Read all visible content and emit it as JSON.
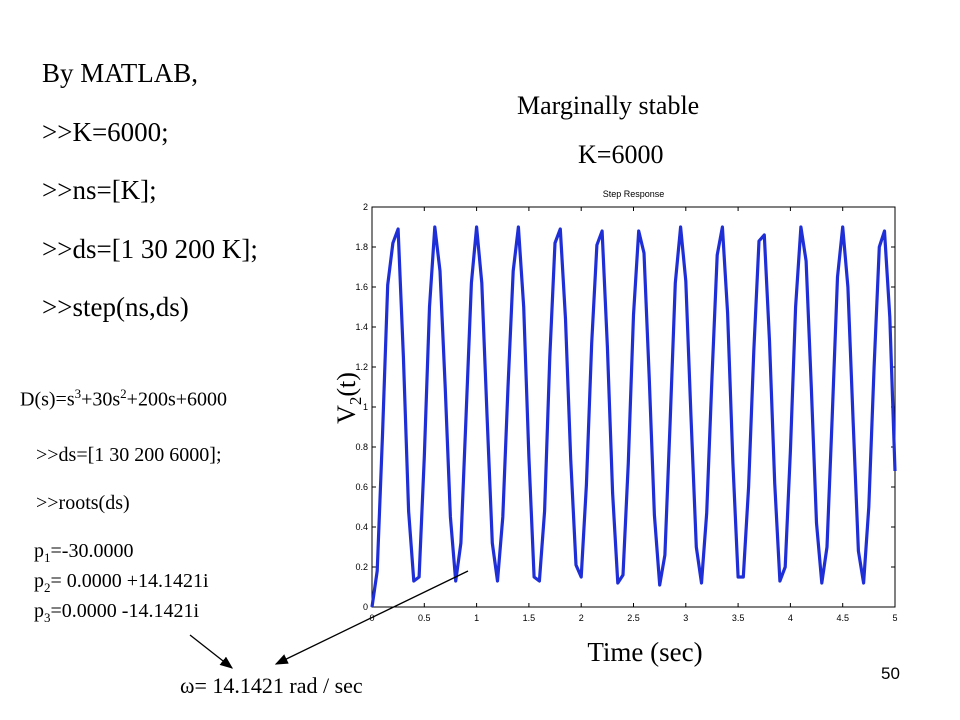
{
  "code": {
    "heading": "By MATLAB,",
    "lines": [
      ">>K=6000;",
      ">>ns=[K];",
      ">>ds=[1 30 200 K];",
      ">>step(ns,ds)"
    ]
  },
  "annotation": {
    "line1": "Marginally stable",
    "line2": "K=6000"
  },
  "polynomial": {
    "prefix": "D(s)=s",
    "exp1": "3",
    "mid": "+30s",
    "exp2": "2",
    "suffix": "+200s+6000"
  },
  "roots_code": {
    "line1": ">>ds=[1 30 200 6000];",
    "line2": ">>roots(ds)"
  },
  "roots": [
    {
      "sym": "p",
      "idx": "1",
      "value": "=-30.0000"
    },
    {
      "sym": "p",
      "idx": "2",
      "value": "= 0.0000 +14.1421i"
    },
    {
      "sym": "p",
      "idx": "3",
      "value": "=0.0000 -14.1421i"
    }
  ],
  "omega": {
    "symbol": "ω",
    "value": "= 14.1421 rad / sec"
  },
  "page_number": "50",
  "colors": {
    "trace": "#1f2fd8",
    "axis": "#000000"
  },
  "chart_data": {
    "type": "line",
    "title": "Step Response",
    "xlabel": "Time (sec)",
    "ylabel_main": "V",
    "ylabel_sub": "2",
    "ylabel_tail": "(t)",
    "xlim": [
      0,
      5
    ],
    "ylim": [
      0,
      2
    ],
    "xticks": [
      0,
      0.5,
      1,
      1.5,
      2,
      2.5,
      3,
      3.5,
      4,
      4.5,
      5
    ],
    "xtick_labels": [
      "0",
      "0.5",
      "1",
      "1.5",
      "2",
      "2.5",
      "3",
      "3.5",
      "4",
      "4.5",
      "5"
    ],
    "yticks": [
      0,
      0.2,
      0.4,
      0.6,
      0.8,
      1,
      1.2,
      1.4,
      1.6,
      1.8,
      2
    ],
    "ytick_labels": [
      "0",
      "0.2",
      "0.4",
      "0.6",
      "0.8",
      "1",
      "1.2",
      "1.4",
      "1.6",
      "1.8",
      "2"
    ],
    "series": [
      {
        "name": "step(ns,ds)",
        "x": [
          0,
          0.05,
          0.1,
          0.15,
          0.2,
          0.25,
          0.3,
          0.35,
          0.4,
          0.45,
          0.5,
          0.55,
          0.6,
          0.65,
          0.7,
          0.75,
          0.8,
          0.85,
          0.9,
          0.95,
          1,
          1.05,
          1.1,
          1.15,
          1.2,
          1.25,
          1.3,
          1.35,
          1.4,
          1.45,
          1.5,
          1.55,
          1.6,
          1.65,
          1.7,
          1.75,
          1.8,
          1.85,
          1.9,
          1.95,
          2,
          2.05,
          2.1,
          2.15,
          2.2,
          2.25,
          2.3,
          2.35,
          2.4,
          2.45,
          2.5,
          2.55,
          2.6,
          2.65,
          2.7,
          2.75,
          2.8,
          2.85,
          2.9,
          2.95,
          3,
          3.05,
          3.1,
          3.15,
          3.2,
          3.25,
          3.3,
          3.35,
          3.4,
          3.45,
          3.5,
          3.55,
          3.6,
          3.65,
          3.7,
          3.75,
          3.8,
          3.85,
          3.9,
          3.95,
          4,
          4.05,
          4.1,
          4.15,
          4.2,
          4.25,
          4.3,
          4.35,
          4.4,
          4.45,
          4.5,
          4.55,
          4.6,
          4.65,
          4.7,
          4.75,
          4.8,
          4.85,
          4.9,
          4.95,
          5
        ],
        "y": [
          0,
          0.18,
          0.86,
          1.61,
          1.82,
          1.89,
          1.25,
          0.48,
          0.13,
          0.15,
          0.75,
          1.5,
          1.9,
          1.68,
          1.1,
          0.45,
          0.13,
          0.32,
          0.96,
          1.62,
          1.9,
          1.62,
          0.95,
          0.32,
          0.13,
          0.45,
          1.1,
          1.68,
          1.9,
          1.5,
          0.75,
          0.15,
          0.13,
          0.48,
          1.25,
          1.82,
          1.89,
          1.44,
          0.74,
          0.21,
          0.15,
          0.61,
          1.32,
          1.81,
          1.88,
          1.3,
          0.57,
          0.12,
          0.16,
          0.72,
          1.46,
          1.88,
          1.77,
          1.15,
          0.46,
          0.11,
          0.26,
          0.92,
          1.62,
          1.9,
          1.63,
          0.95,
          0.3,
          0.12,
          0.47,
          1.15,
          1.76,
          1.9,
          1.47,
          0.72,
          0.15,
          0.15,
          0.6,
          1.28,
          1.83,
          1.86,
          1.33,
          0.62,
          0.13,
          0.2,
          0.78,
          1.5,
          1.9,
          1.73,
          1.1,
          0.42,
          0.12,
          0.3,
          0.95,
          1.65,
          1.9,
          1.6,
          0.92,
          0.28,
          0.12,
          0.5,
          1.2,
          1.8,
          1.88,
          1.45,
          0.68
        ]
      }
    ]
  }
}
